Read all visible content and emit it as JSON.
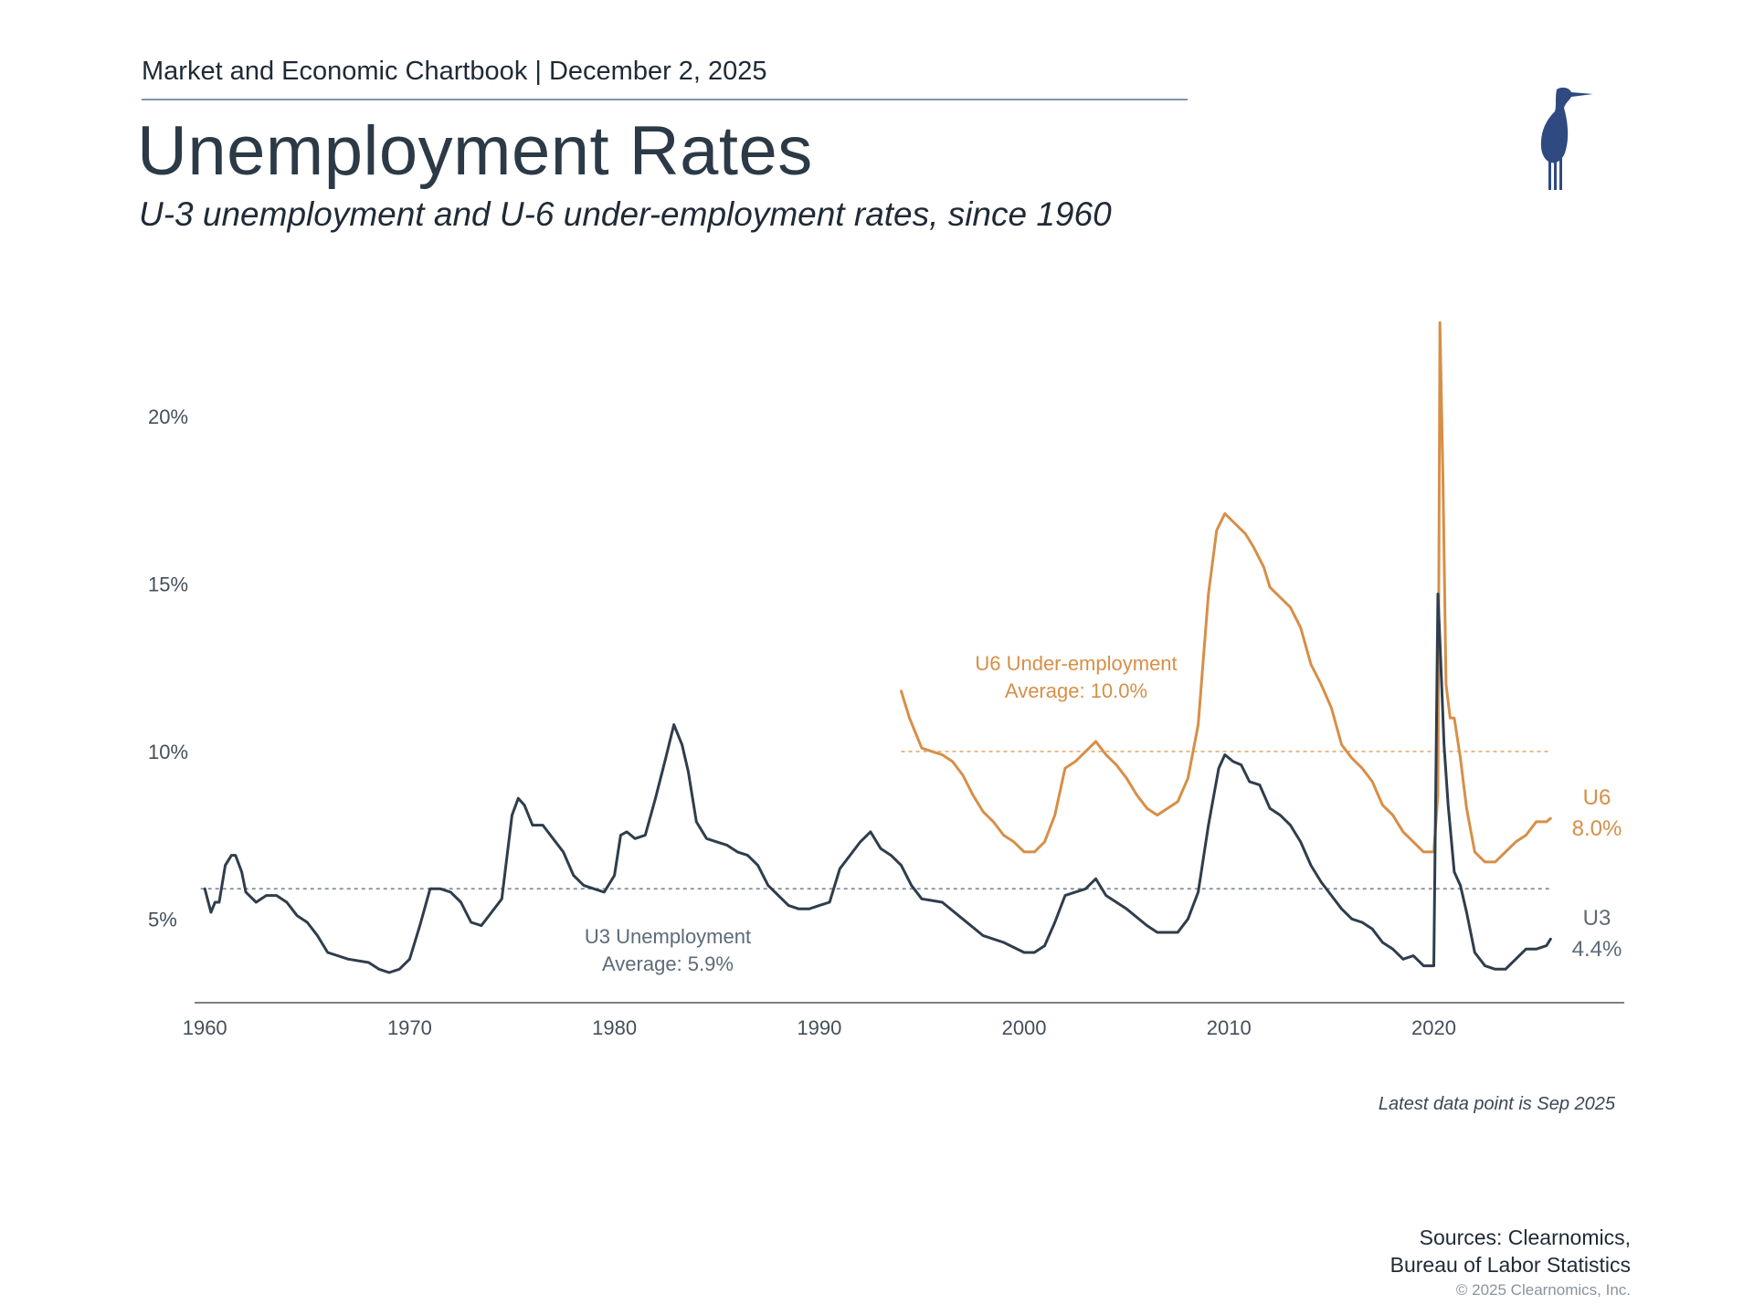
{
  "header": {
    "chartbook_line": "Market and Economic Chartbook | December 2, 2025",
    "title": "Unemployment Rates",
    "subtitle": "U-3 unemployment and U-6 under-employment rates, since 1960"
  },
  "logo": {
    "icon": "heron-logo-icon",
    "color": "#2f4a80"
  },
  "colors": {
    "u3": "#2f3d4c",
    "u6": "#d68f47",
    "axis": "#555555",
    "tick": "#444f5a"
  },
  "chart_data": {
    "type": "line",
    "ylim": [
      2.5,
      23
    ],
    "xlim": [
      1959.5,
      2029.3
    ],
    "y_ticks": [
      {
        "value": 5,
        "label": "5%"
      },
      {
        "value": 10,
        "label": "10%"
      },
      {
        "value": 15,
        "label": "15%"
      },
      {
        "value": 20,
        "label": "20%"
      }
    ],
    "x_ticks": [
      {
        "value": 1960,
        "label": "1960"
      },
      {
        "value": 1970,
        "label": "1970"
      },
      {
        "value": 1980,
        "label": "1980"
      },
      {
        "value": 1990,
        "label": "1990"
      },
      {
        "value": 2000,
        "label": "2000"
      },
      {
        "value": 2010,
        "label": "2010"
      },
      {
        "value": 2020,
        "label": "2020"
      }
    ],
    "grid": false,
    "series": [
      {
        "name": "U3",
        "latest_label": "4.4%",
        "average": 5.9,
        "annotation": [
          "U3 Unemployment",
          "Average: 5.9%"
        ],
        "x": [
          1960.0,
          1960.3,
          1960.5,
          1960.7,
          1961.0,
          1961.3,
          1961.5,
          1961.8,
          1962.0,
          1962.5,
          1963.0,
          1963.5,
          1964.0,
          1964.5,
          1965.0,
          1965.5,
          1966.0,
          1967.0,
          1968.0,
          1968.5,
          1969.0,
          1969.5,
          1970.0,
          1970.5,
          1971.0,
          1971.5,
          1972.0,
          1972.5,
          1973.0,
          1973.5,
          1974.0,
          1974.5,
          1975.0,
          1975.3,
          1975.6,
          1976.0,
          1976.5,
          1977.0,
          1977.5,
          1978.0,
          1978.5,
          1979.0,
          1979.5,
          1980.0,
          1980.3,
          1980.6,
          1981.0,
          1981.5,
          1982.0,
          1982.5,
          1982.9,
          1983.3,
          1983.6,
          1984.0,
          1984.5,
          1985.0,
          1985.5,
          1986.0,
          1986.5,
          1987.0,
          1987.5,
          1988.0,
          1988.5,
          1989.0,
          1989.5,
          1990.0,
          1990.5,
          1991.0,
          1991.5,
          1992.0,
          1992.5,
          1993.0,
          1993.5,
          1994.0,
          1994.5,
          1995.0,
          1996.0,
          1997.0,
          1998.0,
          1999.0,
          2000.0,
          2000.5,
          2001.0,
          2001.5,
          2002.0,
          2002.5,
          2003.0,
          2003.5,
          2004.0,
          2005.0,
          2006.0,
          2006.5,
          2007.0,
          2007.5,
          2008.0,
          2008.5,
          2009.0,
          2009.5,
          2009.8,
          2010.2,
          2010.6,
          2011.0,
          2011.5,
          2012.0,
          2012.5,
          2013.0,
          2013.5,
          2014.0,
          2014.5,
          2015.0,
          2015.5,
          2016.0,
          2016.5,
          2017.0,
          2017.5,
          2018.0,
          2018.5,
          2019.0,
          2019.5,
          2020.0,
          2020.2,
          2020.3,
          2020.5,
          2020.7,
          2021.0,
          2021.3,
          2021.6,
          2022.0,
          2022.5,
          2023.0,
          2023.5,
          2024.0,
          2024.5,
          2025.0,
          2025.5,
          2025.7
        ],
        "y": [
          5.9,
          5.2,
          5.5,
          5.5,
          6.6,
          6.9,
          6.9,
          6.4,
          5.8,
          5.5,
          5.7,
          5.7,
          5.5,
          5.1,
          4.9,
          4.5,
          4.0,
          3.8,
          3.7,
          3.5,
          3.4,
          3.5,
          3.8,
          4.8,
          5.9,
          5.9,
          5.8,
          5.5,
          4.9,
          4.8,
          5.2,
          5.6,
          8.1,
          8.6,
          8.4,
          7.8,
          7.8,
          7.4,
          7.0,
          6.3,
          6.0,
          5.9,
          5.8,
          6.3,
          7.5,
          7.6,
          7.4,
          7.5,
          8.6,
          9.8,
          10.8,
          10.2,
          9.4,
          7.9,
          7.4,
          7.3,
          7.2,
          7.0,
          6.9,
          6.6,
          6.0,
          5.7,
          5.4,
          5.3,
          5.3,
          5.4,
          5.5,
          6.5,
          6.9,
          7.3,
          7.6,
          7.1,
          6.9,
          6.6,
          6.0,
          5.6,
          5.5,
          5.0,
          4.5,
          4.3,
          4.0,
          4.0,
          4.2,
          4.9,
          5.7,
          5.8,
          5.9,
          6.2,
          5.7,
          5.3,
          4.8,
          4.6,
          4.6,
          4.6,
          5.0,
          5.8,
          7.8,
          9.5,
          9.9,
          9.7,
          9.6,
          9.1,
          9.0,
          8.3,
          8.1,
          7.8,
          7.3,
          6.6,
          6.1,
          5.7,
          5.3,
          5.0,
          4.9,
          4.7,
          4.3,
          4.1,
          3.8,
          3.9,
          3.6,
          3.6,
          14.7,
          13.3,
          10.2,
          8.4,
          6.4,
          6.0,
          5.2,
          4.0,
          3.6,
          3.5,
          3.5,
          3.8,
          4.1,
          4.1,
          4.2,
          4.4
        ]
      },
      {
        "name": "U6",
        "latest_label": "8.0%",
        "average": 10.0,
        "annotation": [
          "U6 Under-employment",
          "Average: 10.0%"
        ],
        "x": [
          1994.0,
          1994.4,
          1995.0,
          1995.5,
          1996.0,
          1996.5,
          1997.0,
          1997.5,
          1998.0,
          1998.5,
          1999.0,
          1999.5,
          2000.0,
          2000.5,
          2001.0,
          2001.5,
          2002.0,
          2002.5,
          2003.0,
          2003.5,
          2004.0,
          2004.5,
          2005.0,
          2005.5,
          2006.0,
          2006.5,
          2007.0,
          2007.5,
          2008.0,
          2008.5,
          2009.0,
          2009.4,
          2009.8,
          2010.3,
          2010.8,
          2011.2,
          2011.7,
          2012.0,
          2012.5,
          2013.0,
          2013.5,
          2014.0,
          2014.5,
          2015.0,
          2015.5,
          2016.0,
          2016.5,
          2017.0,
          2017.5,
          2018.0,
          2018.5,
          2019.0,
          2019.5,
          2020.0,
          2020.2,
          2020.3,
          2020.45,
          2020.6,
          2020.8,
          2021.0,
          2021.3,
          2021.6,
          2022.0,
          2022.5,
          2023.0,
          2023.5,
          2024.0,
          2024.5,
          2025.0,
          2025.5,
          2025.7
        ],
        "y": [
          11.8,
          11.0,
          10.1,
          10.0,
          9.9,
          9.7,
          9.3,
          8.7,
          8.2,
          7.9,
          7.5,
          7.3,
          7.0,
          7.0,
          7.3,
          8.1,
          9.5,
          9.7,
          10.0,
          10.3,
          9.9,
          9.6,
          9.2,
          8.7,
          8.3,
          8.1,
          8.3,
          8.5,
          9.2,
          10.8,
          14.7,
          16.6,
          17.1,
          16.8,
          16.5,
          16.1,
          15.5,
          14.9,
          14.6,
          14.3,
          13.7,
          12.6,
          12.0,
          11.3,
          10.2,
          9.8,
          9.5,
          9.1,
          8.4,
          8.1,
          7.6,
          7.3,
          7.0,
          7.0,
          8.7,
          22.8,
          18.0,
          12.0,
          11.0,
          11.0,
          9.8,
          8.3,
          7.0,
          6.7,
          6.7,
          7.0,
          7.3,
          7.5,
          7.9,
          7.9,
          8.0
        ]
      }
    ],
    "legend": "none (series labeled at right end)"
  },
  "footer": {
    "latest_note": "Latest data point is Sep 2025",
    "sources_line1": "Sources: Clearnomics,",
    "sources_line2": "Bureau of Labor Statistics",
    "copyright": "© 2025 Clearnomics, Inc."
  }
}
